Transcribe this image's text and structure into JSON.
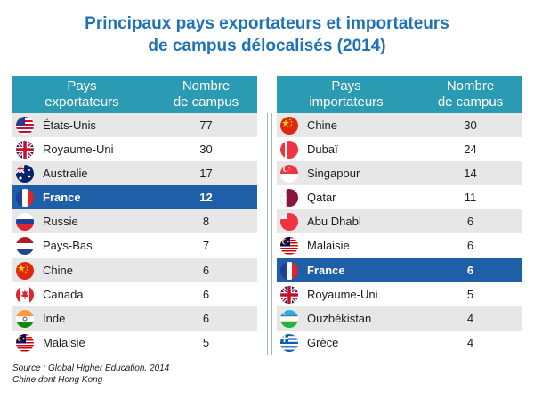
{
  "title": {
    "line1": "Principaux pays exportateurs et importateurs",
    "line2": "de campus délocalisés (2014)"
  },
  "left": {
    "col1": [
      "Pays",
      "exportateurs"
    ],
    "col2": [
      "Nombre",
      "de campus"
    ],
    "rows": [
      {
        "country": "États-Unis",
        "value": "77",
        "flag": "usa-flag-icon"
      },
      {
        "country": "Royaume-Uni",
        "value": "30",
        "flag": "uk-flag-icon"
      },
      {
        "country": "Australie",
        "value": "17",
        "flag": "australia-flag-icon"
      },
      {
        "country": "France",
        "value": "12",
        "flag": "france-flag-icon"
      },
      {
        "country": "Russie",
        "value": "8",
        "flag": "russia-flag-icon"
      },
      {
        "country": "Pays-Bas",
        "value": "7",
        "flag": "netherlands-flag-icon"
      },
      {
        "country": "Chine",
        "value": "6",
        "flag": "china-flag-icon"
      },
      {
        "country": "Canada",
        "value": "6",
        "flag": "canada-flag-icon"
      },
      {
        "country": "Inde",
        "value": "6",
        "flag": "india-flag-icon"
      },
      {
        "country": "Malaisie",
        "value": "5",
        "flag": "malaysia-flag-icon"
      }
    ]
  },
  "right": {
    "col1": [
      "Pays",
      "importateurs"
    ],
    "col2": [
      "Nombre",
      "de campus"
    ],
    "rows": [
      {
        "country": "Chine",
        "value": "30",
        "flag": "china-flag-icon"
      },
      {
        "country": "Dubaï",
        "value": "24",
        "flag": "dubai-flag-icon"
      },
      {
        "country": "Singapour",
        "value": "14",
        "flag": "singapore-flag-icon"
      },
      {
        "country": "Qatar",
        "value": "11",
        "flag": "qatar-flag-icon"
      },
      {
        "country": "Abu Dhabi",
        "value": "6",
        "flag": "abu-dhabi-flag-icon"
      },
      {
        "country": "Malaisie",
        "value": "6",
        "flag": "malaysia-flag-icon"
      },
      {
        "country": "France",
        "value": "6",
        "flag": "france-flag-icon"
      },
      {
        "country": "Royaume-Uni",
        "value": "5",
        "flag": "uk-flag-icon"
      },
      {
        "country": "Ouzbékistan",
        "value": "4",
        "flag": "uzbekistan-flag-icon"
      },
      {
        "country": "Grèce",
        "value": "4",
        "flag": "greece-flag-icon"
      }
    ]
  },
  "source": {
    "line1": "Source : Global Higher Education, 2014",
    "line2": "Chine dont Hong Kong"
  },
  "colors": {
    "title": "#1f72b8",
    "header": "#2a9bb2",
    "highlight": "#1f5fa7",
    "stripe": "#e7e7e7"
  }
}
